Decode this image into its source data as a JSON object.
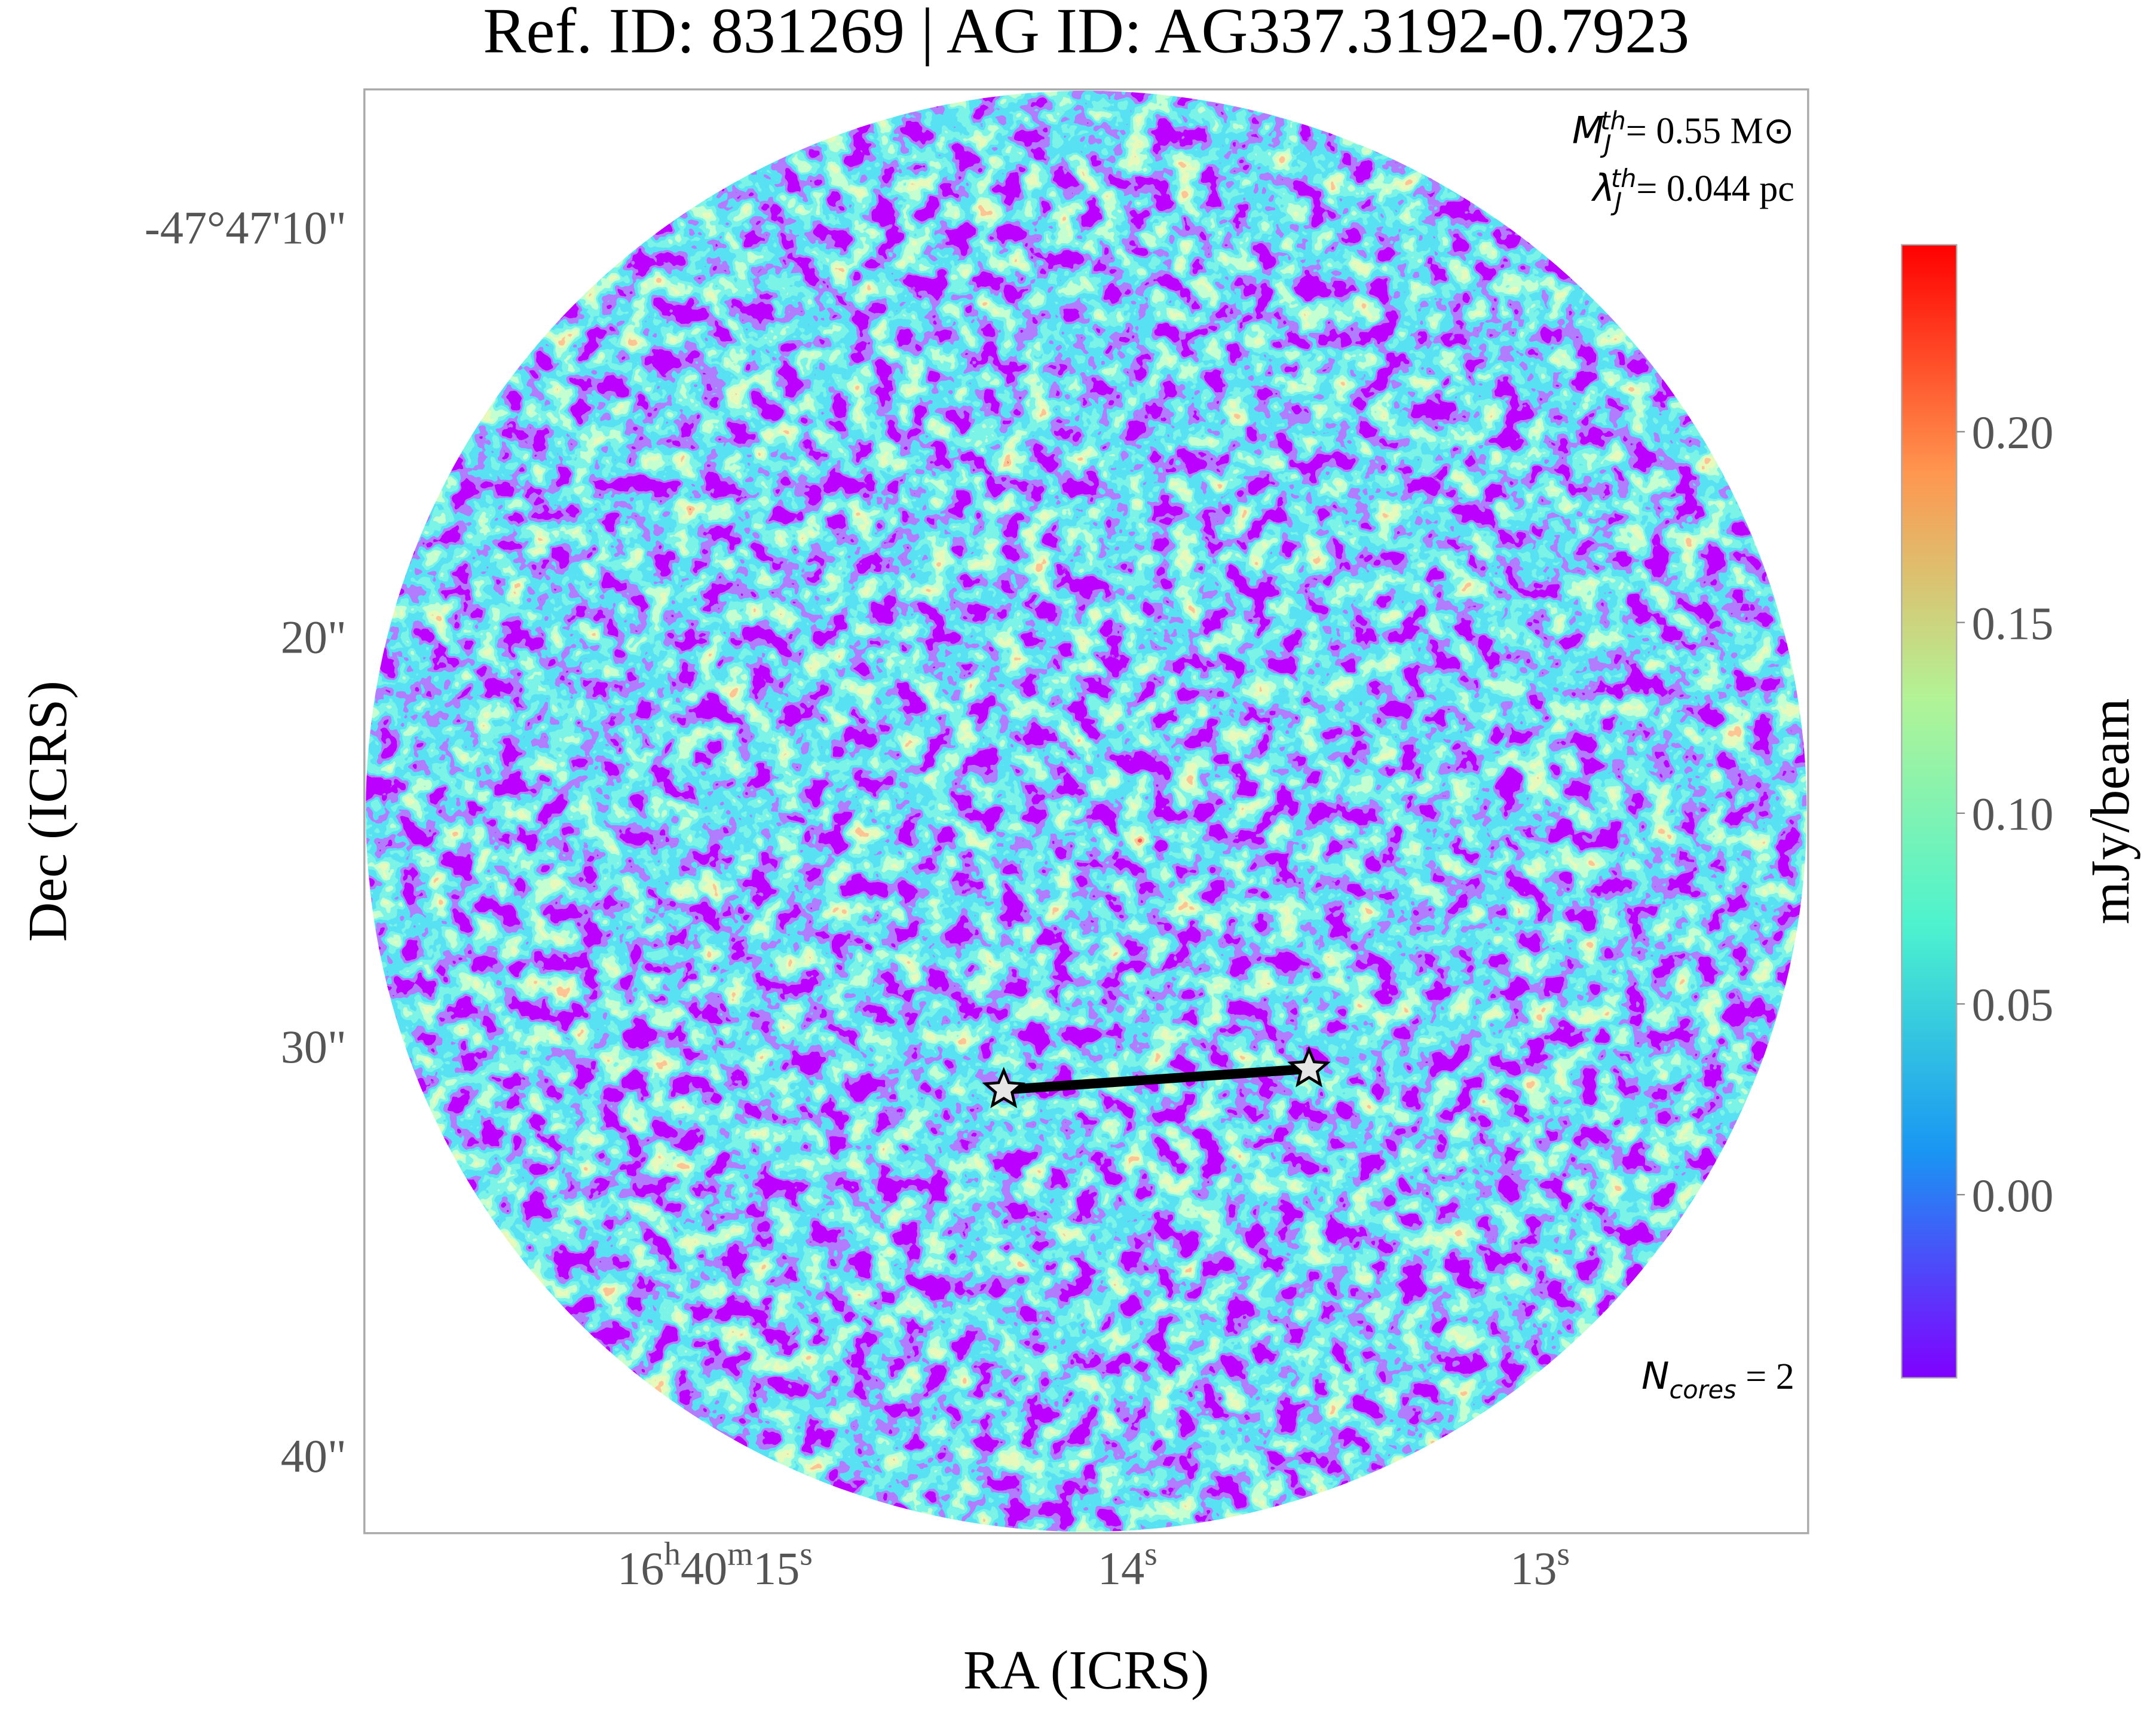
{
  "chart_data": {
    "type": "image",
    "title": "Ref. ID: 831269 | AG ID: AG337.3192-0.7923",
    "x_label": "RA (ICRS)",
    "y_label": "Dec (ICRS)",
    "xlim": [
      15.85,
      12.35
    ],
    "ylim": [
      6.64,
      41.9
    ],
    "xticks": [
      {
        "value": 15,
        "label": "16h40m15s"
      },
      {
        "value": 14,
        "label": "14s"
      },
      {
        "value": 13,
        "label": "13s"
      }
    ],
    "yticks": [
      {
        "value": 10,
        "label": "-47°47'10\""
      },
      {
        "value": 20,
        "label": "20\""
      },
      {
        "value": 30,
        "label": "30\""
      },
      {
        "value": 40,
        "label": "40\""
      }
    ],
    "colorbar": {
      "label": "mJy/beam",
      "colormap": "rainbow",
      "clim": [
        -0.048,
        0.249
      ],
      "ticks": [
        {
          "value": 0.2,
          "label": "0.20"
        },
        {
          "value": 0.15,
          "label": "0.15"
        },
        {
          "value": 0.1,
          "label": "0.10"
        },
        {
          "value": 0.05,
          "label": "0.05"
        },
        {
          "value": 0,
          "label": "0.00"
        }
      ]
    },
    "cores": {
      "x": [
        14.3,
        13.56
      ],
      "y": [
        31.07,
        30.56
      ]
    },
    "annotations": {
      "jeans_mass": {
        "symbol": "M",
        "sub": "J",
        "sup": "th",
        "text": "= 0.55 M⊙"
      },
      "jeans_length": {
        "symbol": "λ",
        "sub": "J",
        "sup": "th",
        "text": "= 0.044 pc"
      },
      "n_cores": {
        "symbol": "N",
        "sub": "cores",
        "text": " = 2"
      }
    }
  }
}
